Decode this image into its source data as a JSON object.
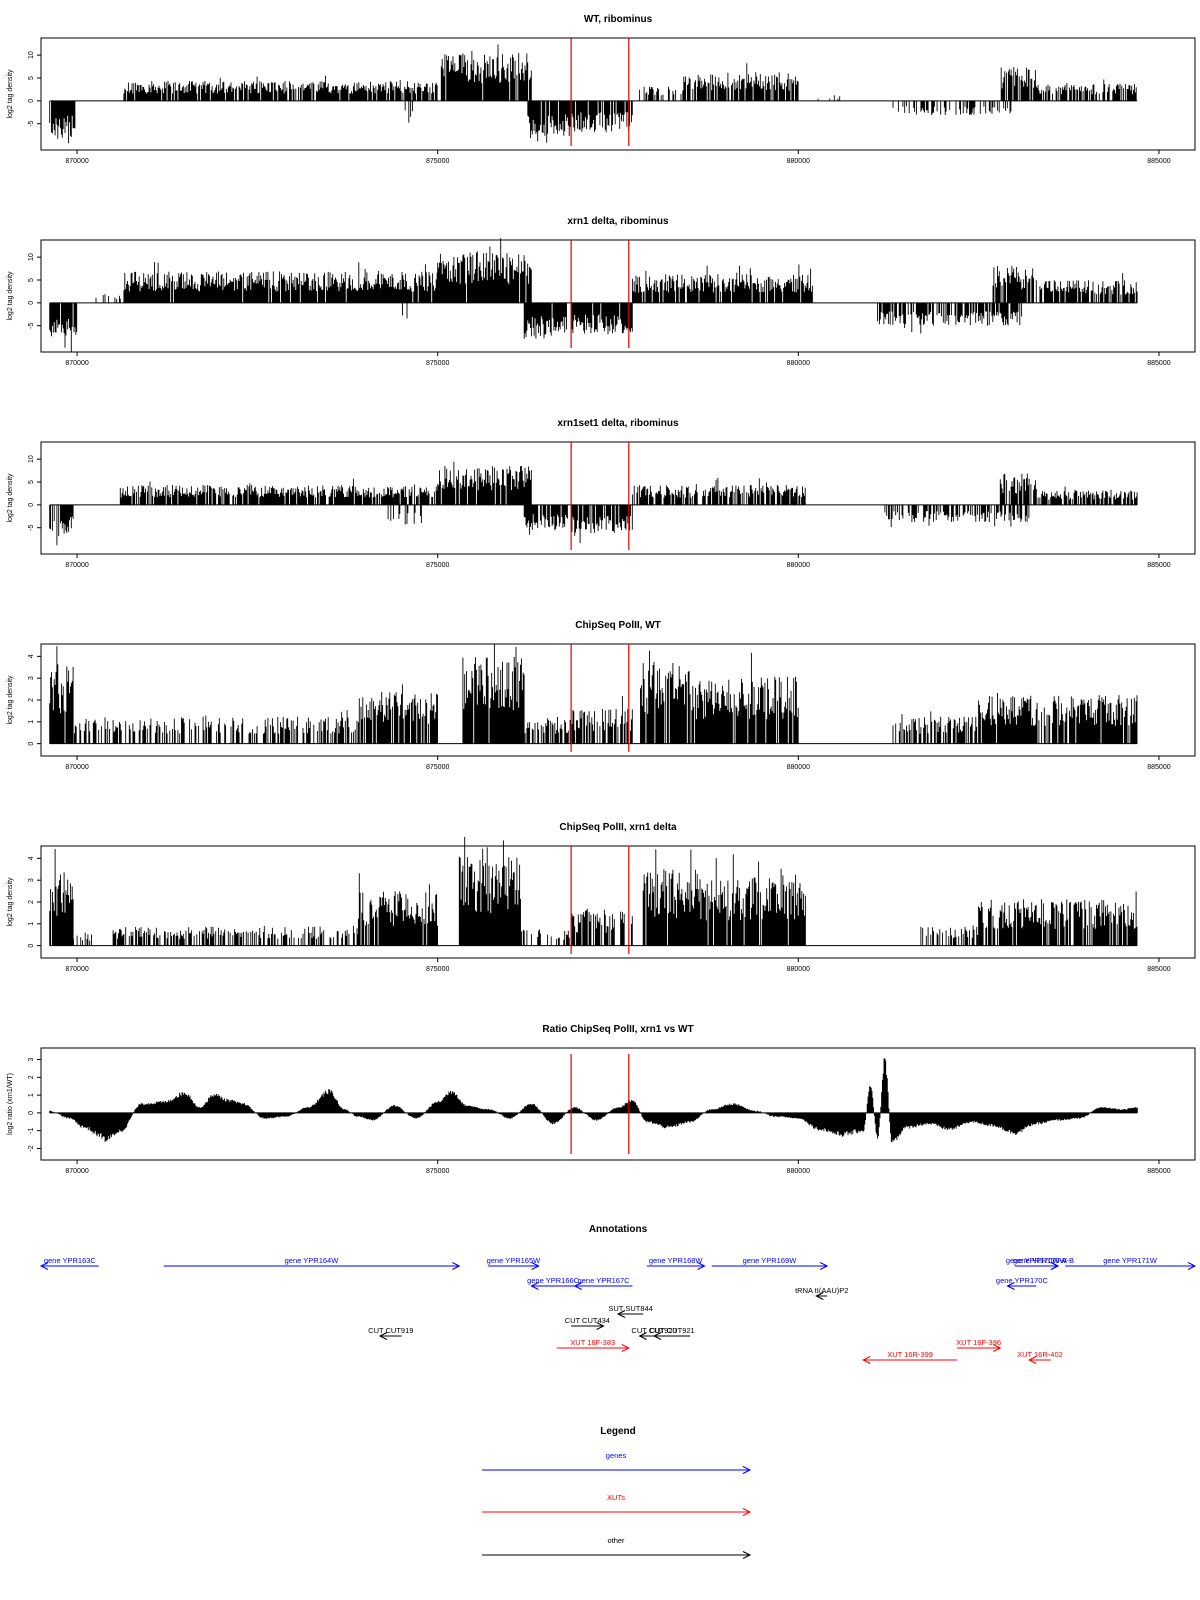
{
  "chart_data": [
    {
      "type": "bar",
      "title": "WT, ribominus",
      "ylabel": "log2 tag density",
      "xlim": [
        869500,
        885500
      ],
      "ylim": [
        -9,
        12
      ],
      "yticks": [
        -5,
        0,
        5,
        10
      ],
      "ytick_labels": [
        "-5",
        "0",
        "5",
        "10"
      ],
      "xticks": [
        870000,
        875000,
        880000,
        885000
      ],
      "xtick_labels": [
        "870000",
        "875000",
        "880000",
        "885000"
      ],
      "vlines": [
        876850,
        877650
      ],
      "grid": false,
      "segments": [
        {
          "x": [
            869620,
            869980
          ],
          "y": -7,
          "sign": -1,
          "density": 0.95
        },
        {
          "x": [
            870650,
            875000
          ],
          "y": 3.5,
          "sign": 1,
          "density": 0.85
        },
        {
          "x": [
            874550,
            874700
          ],
          "y": -4,
          "sign": -1,
          "density": 0.15
        },
        {
          "x": [
            875050,
            876300
          ],
          "y": 8.5,
          "sign": 1,
          "density": 0.95
        },
        {
          "x": [
            876250,
            876850
          ],
          "y": -6.5,
          "sign": -1,
          "density": 0.9
        },
        {
          "x": [
            876850,
            877700
          ],
          "y": -5.5,
          "sign": -1,
          "density": 0.85
        },
        {
          "x": [
            877750,
            878400
          ],
          "y": 2.5,
          "sign": 1,
          "density": 0.4
        },
        {
          "x": [
            878400,
            880000
          ],
          "y": 5.0,
          "sign": 1,
          "density": 0.85
        },
        {
          "x": [
            880200,
            880800
          ],
          "y": 1,
          "sign": 1,
          "density": 0.1
        },
        {
          "x": [
            881300,
            883000
          ],
          "y": -2.5,
          "sign": -1,
          "density": 0.4
        },
        {
          "x": [
            882800,
            883300
          ],
          "y": 6,
          "sign": 1,
          "density": 0.9
        },
        {
          "x": [
            883300,
            884700
          ],
          "y": 3.0,
          "sign": 1,
          "density": 0.7
        }
      ]
    },
    {
      "type": "bar",
      "title": "xrn1 delta, ribominus",
      "ylabel": "log2 tag density",
      "xlim": [
        869500,
        885500
      ],
      "ylim": [
        -9,
        12
      ],
      "yticks": [
        -5,
        0,
        5,
        10
      ],
      "ytick_labels": [
        "-5",
        "0",
        "5",
        "10"
      ],
      "xticks": [
        870000,
        875000,
        880000,
        885000
      ],
      "xtick_labels": [
        "870000",
        "875000",
        "880000",
        "885000"
      ],
      "vlines": [
        876850,
        877650
      ],
      "grid": false,
      "segments": [
        {
          "x": [
            869620,
            870000
          ],
          "y": -7,
          "sign": -1,
          "density": 0.95
        },
        {
          "x": [
            870200,
            870600
          ],
          "y": 1.5,
          "sign": 1,
          "density": 0.3
        },
        {
          "x": [
            870650,
            875000
          ],
          "y": 5.5,
          "sign": 1,
          "density": 0.95
        },
        {
          "x": [
            874500,
            874700
          ],
          "y": -3.5,
          "sign": -1,
          "density": 0.2
        },
        {
          "x": [
            875000,
            876300
          ],
          "y": 9.0,
          "sign": 1,
          "density": 0.98
        },
        {
          "x": [
            876200,
            876800
          ],
          "y": -6.5,
          "sign": -1,
          "density": 0.95
        },
        {
          "x": [
            876850,
            877700
          ],
          "y": -5.5,
          "sign": -1,
          "density": 0.9
        },
        {
          "x": [
            877700,
            880200
          ],
          "y": 5.0,
          "sign": 1,
          "density": 0.92
        },
        {
          "x": [
            881100,
            883100
          ],
          "y": -4.0,
          "sign": -1,
          "density": 0.7
        },
        {
          "x": [
            882700,
            883300
          ],
          "y": 6.5,
          "sign": 1,
          "density": 0.9
        },
        {
          "x": [
            883300,
            884700
          ],
          "y": 4.0,
          "sign": 1,
          "density": 0.85
        }
      ]
    },
    {
      "type": "bar",
      "title": "xrn1set1 delta, ribominus",
      "ylabel": "log2 tag density",
      "xlim": [
        869500,
        885500
      ],
      "ylim": [
        -9,
        12
      ],
      "yticks": [
        -5,
        0,
        5,
        10
      ],
      "ytick_labels": [
        "-5",
        "0",
        "5",
        "10"
      ],
      "xticks": [
        870000,
        875000,
        880000,
        885000
      ],
      "xtick_labels": [
        "870000",
        "875000",
        "880000",
        "885000"
      ],
      "vlines": [
        876850,
        877650
      ],
      "grid": false,
      "segments": [
        {
          "x": [
            869620,
            869950
          ],
          "y": -5.5,
          "sign": -1,
          "density": 0.9
        },
        {
          "x": [
            870600,
            875000
          ],
          "y": 3.5,
          "sign": 1,
          "density": 0.85
        },
        {
          "x": [
            874300,
            874800
          ],
          "y": -3.5,
          "sign": -1,
          "density": 0.3
        },
        {
          "x": [
            875000,
            876300
          ],
          "y": 7.0,
          "sign": 1,
          "density": 0.9
        },
        {
          "x": [
            876200,
            876800
          ],
          "y": -4.5,
          "sign": -1,
          "density": 0.9
        },
        {
          "x": [
            876850,
            877700
          ],
          "y": -5.0,
          "sign": -1,
          "density": 0.85
        },
        {
          "x": [
            877700,
            880100
          ],
          "y": 3.5,
          "sign": 1,
          "density": 0.8
        },
        {
          "x": [
            881200,
            883200
          ],
          "y": -3.0,
          "sign": -1,
          "density": 0.55
        },
        {
          "x": [
            882800,
            883300
          ],
          "y": 5.5,
          "sign": 1,
          "density": 0.85
        },
        {
          "x": [
            883300,
            884700
          ],
          "y": 2.5,
          "sign": 1,
          "density": 0.75
        }
      ]
    },
    {
      "type": "bar",
      "title": "ChipSeq PolII, WT",
      "ylabel": "log2 tag density",
      "xlim": [
        869500,
        885500
      ],
      "ylim": [
        -0.2,
        4.2
      ],
      "yticks": [
        0,
        1,
        2,
        3,
        4
      ],
      "ytick_labels": [
        "0",
        "1",
        "2",
        "3",
        "4"
      ],
      "xticks": [
        870000,
        875000,
        880000,
        885000
      ],
      "xtick_labels": [
        "870000",
        "875000",
        "880000",
        "885000"
      ],
      "vlines": [
        876850,
        877650
      ],
      "grid": false,
      "segments": [
        {
          "x": [
            869620,
            869950
          ],
          "y": 3.0,
          "sign": 1,
          "density": 0.95
        },
        {
          "x": [
            869950,
            873900
          ],
          "y": 1.0,
          "sign": 1,
          "density": 0.55
        },
        {
          "x": [
            873900,
            875000
          ],
          "y": 1.9,
          "sign": 1,
          "density": 0.85
        },
        {
          "x": [
            875350,
            876200
          ],
          "y": 3.2,
          "sign": 1,
          "density": 0.95
        },
        {
          "x": [
            876200,
            876850
          ],
          "y": 1.0,
          "sign": 1,
          "density": 0.55
        },
        {
          "x": [
            876850,
            877700
          ],
          "y": 1.3,
          "sign": 1,
          "density": 0.7
        },
        {
          "x": [
            877800,
            878500
          ],
          "y": 3.0,
          "sign": 1,
          "density": 0.9
        },
        {
          "x": [
            878500,
            879200
          ],
          "y": 2.4,
          "sign": 1,
          "density": 0.9
        },
        {
          "x": [
            879200,
            880000
          ],
          "y": 2.5,
          "sign": 1,
          "density": 0.9
        },
        {
          "x": [
            881300,
            882500
          ],
          "y": 1.0,
          "sign": 1,
          "density": 0.55
        },
        {
          "x": [
            882500,
            884700
          ],
          "y": 1.8,
          "sign": 1,
          "density": 0.85
        }
      ]
    },
    {
      "type": "bar",
      "title": "ChipSeq PolII, xrn1 delta",
      "ylabel": "log2 tag density",
      "xlim": [
        869500,
        885500
      ],
      "ylim": [
        -0.2,
        4.2
      ],
      "yticks": [
        0,
        1,
        2,
        3,
        4
      ],
      "ytick_labels": [
        "0",
        "1",
        "2",
        "3",
        "4"
      ],
      "xticks": [
        870000,
        875000,
        880000,
        885000
      ],
      "xtick_labels": [
        "870000",
        "875000",
        "880000",
        "885000"
      ],
      "vlines": [
        876850,
        877650
      ],
      "grid": false,
      "segments": [
        {
          "x": [
            869620,
            869950
          ],
          "y": 2.8,
          "sign": 1,
          "density": 0.95
        },
        {
          "x": [
            869950,
            870300
          ],
          "y": 0.5,
          "sign": 1,
          "density": 0.3
        },
        {
          "x": [
            870500,
            873900
          ],
          "y": 0.7,
          "sign": 1,
          "density": 0.55
        },
        {
          "x": [
            873900,
            875000
          ],
          "y": 2.0,
          "sign": 1,
          "density": 0.9
        },
        {
          "x": [
            875300,
            876150
          ],
          "y": 3.3,
          "sign": 1,
          "density": 0.98
        },
        {
          "x": [
            876150,
            876850
          ],
          "y": 0.6,
          "sign": 1,
          "density": 0.45
        },
        {
          "x": [
            876850,
            877700
          ],
          "y": 1.3,
          "sign": 1,
          "density": 0.75
        },
        {
          "x": [
            877850,
            878600
          ],
          "y": 2.8,
          "sign": 1,
          "density": 0.95
        },
        {
          "x": [
            878600,
            879300
          ],
          "y": 2.5,
          "sign": 1,
          "density": 0.92
        },
        {
          "x": [
            879300,
            880100
          ],
          "y": 2.6,
          "sign": 1,
          "density": 0.92
        },
        {
          "x": [
            881700,
            882500
          ],
          "y": 0.7,
          "sign": 1,
          "density": 0.45
        },
        {
          "x": [
            882500,
            884700
          ],
          "y": 1.7,
          "sign": 1,
          "density": 0.85
        }
      ]
    },
    {
      "type": "area",
      "title": "Ratio ChipSeq PolII, xrn1 vs WT",
      "ylabel": "log2 ratio (xrn1/WT)",
      "xlim": [
        869500,
        885500
      ],
      "ylim": [
        -2.2,
        3.2
      ],
      "yticks": [
        -2,
        -1,
        0,
        1,
        2,
        3
      ],
      "ytick_labels": [
        "-2",
        "-1",
        "0",
        "1",
        "2",
        "3"
      ],
      "xticks": [
        870000,
        875000,
        880000,
        885000
      ],
      "xtick_labels": [
        "870000",
        "875000",
        "880000",
        "885000"
      ],
      "vlines": [
        876850,
        877650
      ],
      "grid": false,
      "x": [
        869620,
        869900,
        870100,
        870300,
        870400,
        870600,
        870900,
        871200,
        871500,
        871700,
        871900,
        872100,
        872300,
        872600,
        872900,
        873200,
        873500,
        873700,
        873900,
        874100,
        874400,
        874700,
        875000,
        875200,
        875400,
        875700,
        876000,
        876300,
        876600,
        876900,
        877200,
        877500,
        877700,
        877900,
        878200,
        878500,
        878800,
        879100,
        879400,
        879700,
        880000,
        880300,
        880600,
        880900,
        881000,
        881100,
        881200,
        881300,
        881500,
        881800,
        882100,
        882400,
        882700,
        883000,
        883300,
        883600,
        883900,
        884200,
        884500,
        884700
      ],
      "y": [
        0.1,
        -0.3,
        -0.8,
        -1.2,
        -1.5,
        -1.0,
        0.5,
        0.6,
        1.1,
        0.3,
        1.0,
        0.7,
        0.5,
        -0.3,
        -0.2,
        0.3,
        1.2,
        0.2,
        -0.2,
        -0.4,
        0.4,
        -0.3,
        0.6,
        1.2,
        0.4,
        0.2,
        -0.3,
        0.5,
        -0.6,
        0.3,
        -0.4,
        0.3,
        0.7,
        -0.5,
        -0.8,
        -0.5,
        0.2,
        0.5,
        0.1,
        -0.2,
        -0.3,
        -0.9,
        -1.2,
        -1.0,
        1.5,
        -1.4,
        2.9,
        -1.6,
        -0.8,
        -0.6,
        -0.9,
        -0.5,
        -0.7,
        -1.1,
        -0.6,
        -0.4,
        -0.3,
        0.3,
        0.2,
        0.3
      ]
    },
    {
      "type": "annotation",
      "title": "Annotations",
      "xlim": [
        869500,
        885500
      ],
      "items": [
        {
          "label": "gene YPR163C",
          "x0": 869500,
          "x1": 870300,
          "row": 0,
          "dir": "left",
          "color": "#0000ff"
        },
        {
          "label": "gene YPR164W",
          "x0": 871200,
          "x1": 875300,
          "row": 0,
          "dir": "right",
          "color": "#0000ff"
        },
        {
          "label": "gene YPR165W",
          "x0": 875700,
          "x1": 876400,
          "row": 0,
          "dir": "right",
          "color": "#0000ff"
        },
        {
          "label": "gene YPR166C",
          "x0": 876300,
          "x1": 876900,
          "row": 1,
          "dir": "left",
          "color": "#0000ff"
        },
        {
          "label": "gene YPR167C",
          "x0": 876900,
          "x1": 877700,
          "row": 1,
          "dir": "left",
          "color": "#0000ff"
        },
        {
          "label": "gene YPR168W",
          "x0": 877900,
          "x1": 878700,
          "row": 0,
          "dir": "right",
          "color": "#0000ff"
        },
        {
          "label": "gene YPR169W",
          "x0": 878800,
          "x1": 880400,
          "row": 0,
          "dir": "right",
          "color": "#0000ff"
        },
        {
          "label": "gene YPR170W-A",
          "x0": 883000,
          "x1": 883600,
          "row": 0,
          "dir": "right",
          "color": "#0000ff"
        },
        {
          "label": "gene YPR170W-B",
          "x0": 883200,
          "x1": 883600,
          "row": 0,
          "dir": "right",
          "color": "#0000ff"
        },
        {
          "label": "gene YPR170C",
          "x0": 882900,
          "x1": 883300,
          "row": 1,
          "dir": "left",
          "color": "#0000ff"
        },
        {
          "label": "gene YPR171W",
          "x0": 883700,
          "x1": 885500,
          "row": 0,
          "dir": "right",
          "color": "#0000ff"
        },
        {
          "label": "tRNA tI(AAU)P2",
          "x0": 880250,
          "x1": 880400,
          "row": 2,
          "dir": "left",
          "color": "#000000"
        },
        {
          "label": "SUT SUT844",
          "x0": 877500,
          "x1": 877850,
          "row": 3,
          "dir": "left",
          "color": "#000000"
        },
        {
          "label": "CUT CUT434",
          "x0": 876850,
          "x1": 877300,
          "row": 4,
          "dir": "right",
          "color": "#000000"
        },
        {
          "label": "CUT CUT919",
          "x0": 874200,
          "x1": 874500,
          "row": 5,
          "dir": "left",
          "color": "#000000"
        },
        {
          "label": "CUT CUT920",
          "x0": 877800,
          "x1": 878200,
          "row": 5,
          "dir": "left",
          "color": "#000000"
        },
        {
          "label": "CUT CUT921",
          "x0": 878000,
          "x1": 878500,
          "row": 5,
          "dir": "left",
          "color": "#000000"
        },
        {
          "label": "XUT 16F-383",
          "x0": 876650,
          "x1": 877650,
          "row": 6,
          "dir": "right",
          "color": "#ff0000"
        },
        {
          "label": "XUT 16R-399",
          "x0": 880900,
          "x1": 882200,
          "row": 7,
          "dir": "left",
          "color": "#ff0000"
        },
        {
          "label": "XUT 16F-396",
          "x0": 882200,
          "x1": 882800,
          "row": 6,
          "dir": "right",
          "color": "#ff0000"
        },
        {
          "label": "XUT 16R-402",
          "x0": 883200,
          "x1": 883500,
          "row": 7,
          "dir": "left",
          "color": "#ff0000"
        }
      ]
    },
    {
      "type": "legend",
      "title": "Legend",
      "entries": [
        {
          "label": "genes",
          "color": "#0000ff"
        },
        {
          "label": "XUTs",
          "color": "#ff0000"
        },
        {
          "label": "other",
          "color": "#000000"
        }
      ]
    }
  ]
}
